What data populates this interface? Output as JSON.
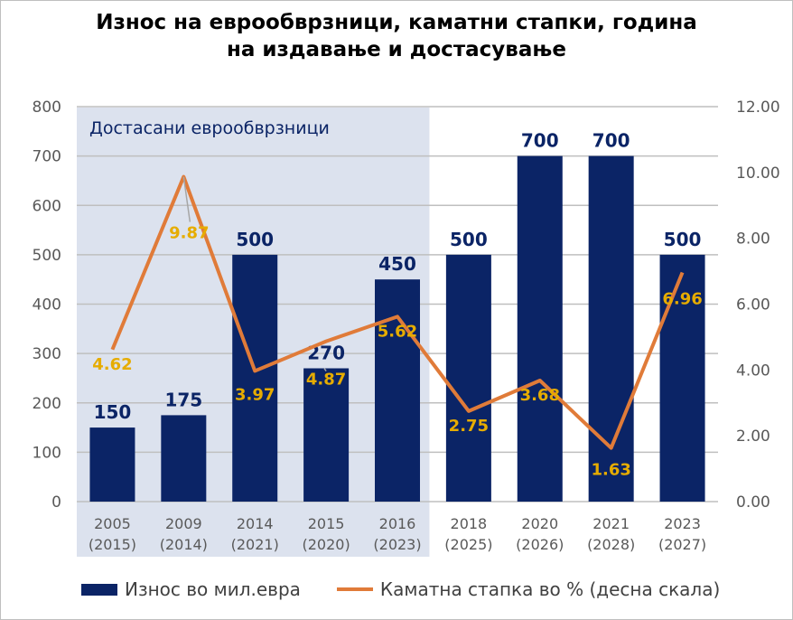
{
  "title": "Износ на еврообврзници, каматни стапки, година на издавање и достасување",
  "title_lines": [
    "Износ на еврообврзници, каматни стапки, година",
    "на издавање и достасување"
  ],
  "chart_data": {
    "type": "bar+line",
    "categories": [
      "2005 (2015)",
      "2009 (2014)",
      "2014 (2021)",
      "2015 (2020)",
      "2016 (2023)",
      "2018 (2025)",
      "2020 (2026)",
      "2021 (2028)",
      "2023 (2027)"
    ],
    "category_lines": [
      [
        "2005",
        "(2015)"
      ],
      [
        "2009",
        "(2014)"
      ],
      [
        "2014",
        "(2021)"
      ],
      [
        "2015",
        "(2020)"
      ],
      [
        "2016",
        "(2023)"
      ],
      [
        "2018",
        "(2025)"
      ],
      [
        "2020",
        "(2026)"
      ],
      [
        "2021",
        "(2028)"
      ],
      [
        "2023",
        "(2027)"
      ]
    ],
    "series": [
      {
        "name": "Износ во мил.евра",
        "type": "bar",
        "axis": "left",
        "values": [
          150,
          175,
          500,
          270,
          450,
          500,
          700,
          700,
          500
        ],
        "labels": [
          "150",
          "175",
          "500",
          "270",
          "450",
          "500",
          "700",
          "700",
          "500"
        ]
      },
      {
        "name": "Каматна стапка во % (десна скала)",
        "type": "line",
        "axis": "right",
        "values": [
          4.62,
          9.87,
          3.97,
          4.87,
          5.62,
          2.75,
          3.68,
          1.63,
          6.96
        ],
        "labels": [
          "4.62",
          "9.87",
          "3.97",
          "4.87",
          "5.62",
          "2.75",
          "3.68",
          "1.63",
          "6.96"
        ]
      }
    ],
    "left_axis": {
      "ylim": [
        0,
        800
      ],
      "ticks": [
        "0",
        "100",
        "200",
        "300",
        "400",
        "500",
        "600",
        "700",
        "800"
      ]
    },
    "right_axis": {
      "ylim": [
        0,
        12
      ],
      "ticks": [
        "0.00",
        "2.00",
        "4.00",
        "6.00",
        "8.00",
        "10.00",
        "12.00"
      ]
    },
    "grid": true,
    "shaded_region": {
      "label": "Достасани еврообврзници",
      "categories": [
        "2005 (2015)",
        "2009 (2014)",
        "2014 (2021)",
        "2015 (2020)",
        "2016 (2023)"
      ]
    },
    "legend_position": "bottom",
    "colors": {
      "bar": "#0b2466",
      "line": "#e07b39",
      "line_labels": "#e6ac00",
      "shade": "#dce2ee",
      "grid": "#bfbfbf"
    }
  }
}
